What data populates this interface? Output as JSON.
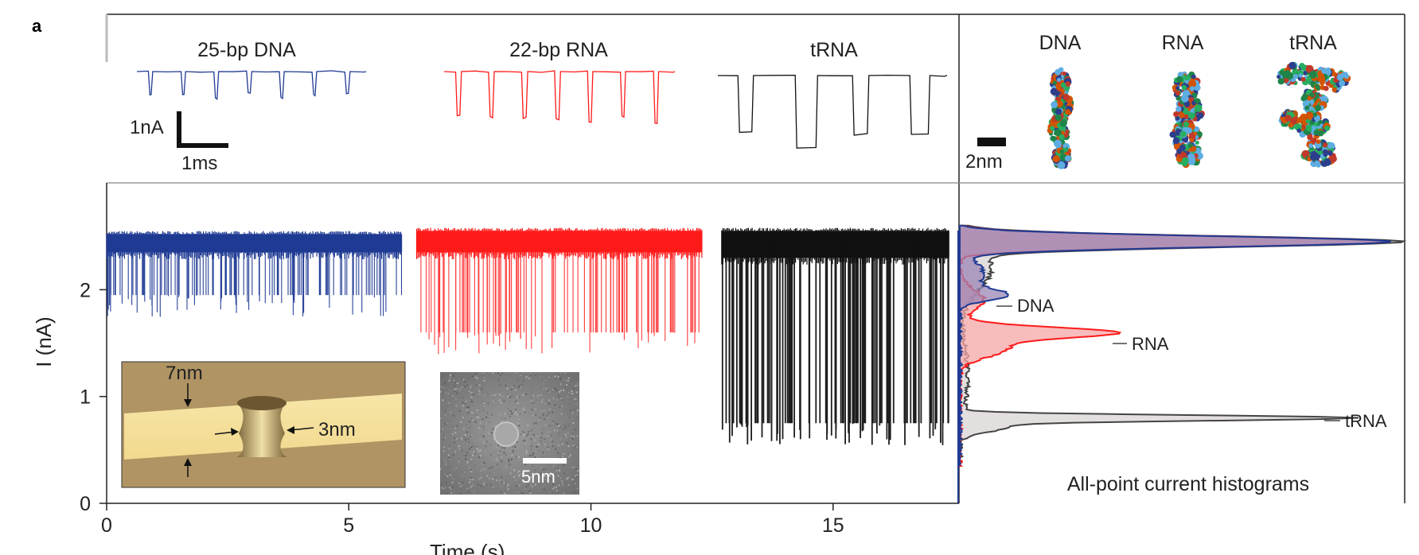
{
  "panel_label": "a",
  "colors": {
    "dna": "#1f3a93",
    "rna": "#ff1a1a",
    "trna": "#111111",
    "dna_fill": "#9b86b5",
    "rna_fill": "#f4a5a5",
    "trna_fill": "#d9d4d4"
  },
  "events": {
    "dna_label": "25-bp DNA",
    "rna_label": "22-bp RNA",
    "trna_label": "tRNA",
    "scale_current": "1nA",
    "scale_time": "1ms"
  },
  "structures": {
    "dna_label": "DNA",
    "rna_label": "RNA",
    "trna_label": "tRNA",
    "scale_bar": "2nm"
  },
  "insets": {
    "pore_thickness_label": "7nm",
    "pore_diameter_label": "3nm",
    "tem_scale_label": "5nm"
  },
  "histogram": {
    "caption": "All-point current histograms",
    "peak_labels": {
      "dna": "DNA",
      "rna": "RNA",
      "trna": "tRNA"
    }
  },
  "chart_data": {
    "type": "line",
    "xlabel": "Time (s)",
    "ylabel": "I (nA)",
    "xlim": [
      0,
      17.6
    ],
    "ylim": [
      0,
      3.0
    ],
    "x_ticks": [
      "0",
      "5",
      "10",
      "15"
    ],
    "y_ticks": [
      "0",
      "1",
      "2"
    ],
    "series": [
      {
        "name": "25-bp DNA",
        "x_range": [
          0,
          6.1
        ],
        "open_pore_nA": [
          2.35,
          2.52
        ],
        "blockade_min_nA": 1.8,
        "blockade_level_nA": 1.95
      },
      {
        "name": "22-bp RNA",
        "x_range": [
          6.4,
          12.3
        ],
        "open_pore_nA": [
          2.35,
          2.55
        ],
        "blockade_min_nA": 1.35,
        "blockade_level_nA": 1.6
      },
      {
        "name": "tRNA",
        "x_range": [
          12.7,
          17.4
        ],
        "open_pore_nA": [
          2.3,
          2.55
        ],
        "blockade_min_nA": 0.55,
        "blockade_level_nA": 0.75
      }
    ],
    "histograms": [
      {
        "name": "DNA",
        "open_peak_nA": 2.45,
        "blockade_peak_nA": 1.95
      },
      {
        "name": "RNA",
        "open_peak_nA": 2.45,
        "blockade_peak_nA": 1.6
      },
      {
        "name": "tRNA",
        "open_peak_nA": 2.45,
        "blockade_peak_nA": 0.8
      }
    ]
  }
}
